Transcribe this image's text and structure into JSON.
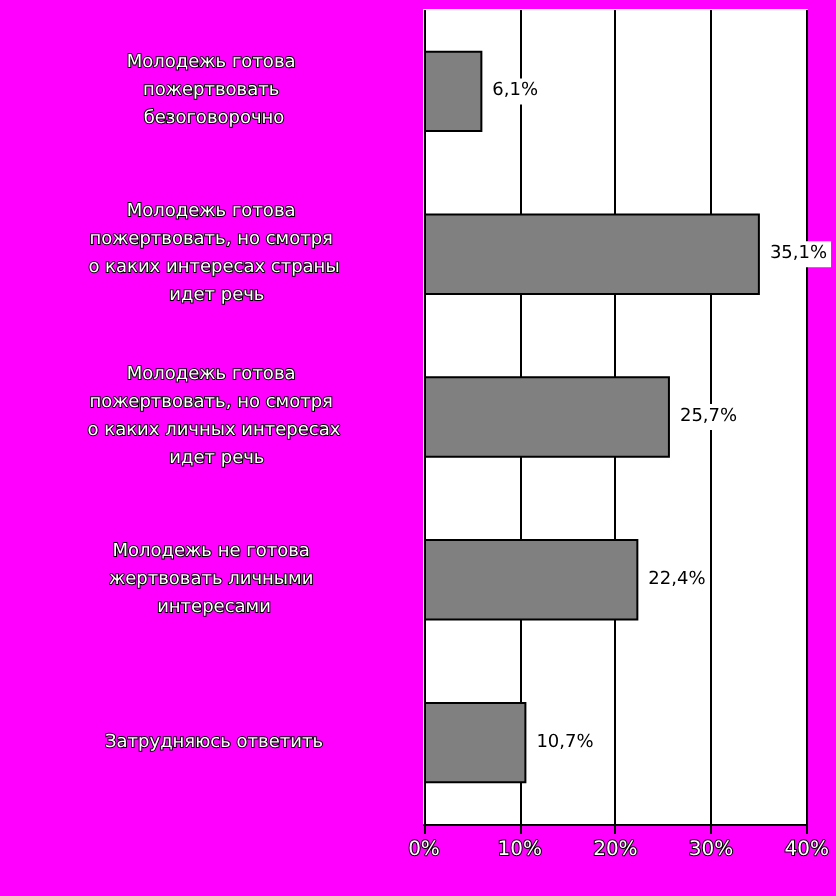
{
  "chart_data": {
    "type": "bar",
    "orientation": "horizontal",
    "categories": [
      "Молодежь готова пожертвовать безоговорочно",
      "Молодежь готова пожертвовать, но смотря о каких интересах страны идет речь",
      "Молодежь готова пожертвовать, но смотря о каких личных интересах идет речь",
      "Молодежь не готова жертвовать личными интересами",
      "Затрудняюсь ответить"
    ],
    "values": [
      6.1,
      35.1,
      25.7,
      22.4,
      10.7
    ],
    "value_labels": [
      "6,1%",
      "35,1%",
      "25,7%",
      "22,4%",
      "10,7%"
    ],
    "color": "#808080",
    "xlim": [
      0,
      40
    ],
    "xticks": [
      {
        "value": 0,
        "label": "0%"
      },
      {
        "value": 10,
        "label": "10%"
      },
      {
        "value": 20,
        "label": "20%"
      },
      {
        "value": 30,
        "label": "30%"
      },
      {
        "value": 40,
        "label": "40%"
      }
    ],
    "grid": "x"
  }
}
